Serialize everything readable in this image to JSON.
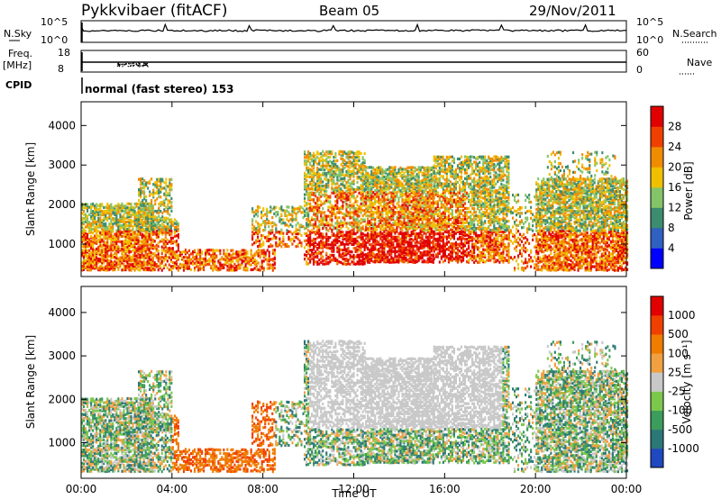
{
  "header": {
    "station": "Pykkvibaer (fitACF)",
    "beam": "Beam 05",
    "date": "29/Nov/2011"
  },
  "left_labels": {
    "nsky": "N.Sky",
    "freq_line1": "Freq.",
    "freq_line2": "[MHz]",
    "cpid": "CPID"
  },
  "right_labels": {
    "nsearch": "N.Search",
    "nave": "Nave"
  },
  "noise_panel": {
    "left_ticks": [
      "10^5",
      "10^0"
    ],
    "right_ticks": [
      "10^5",
      "10^0"
    ]
  },
  "freq_panel": {
    "left_ticks": [
      "18",
      "8"
    ],
    "right_ticks": [
      "60",
      "0"
    ]
  },
  "cpid_text": "normal (fast stereo) 153",
  "chart_data": [
    {
      "type": "heatmap",
      "panel": "power",
      "ylabel": "Slant Range [km]",
      "xlim": [
        "00:00",
        "00:00"
      ],
      "ylim": [
        180,
        4600
      ],
      "ytick_labels": [
        "1000",
        "2000",
        "3000",
        "4000"
      ],
      "colorbar": {
        "label": "Power [dB]",
        "tick_labels": [
          "28",
          "24",
          "20",
          "16",
          "12",
          "8",
          "4"
        ],
        "colors": [
          "#0000ff",
          "#3060c0",
          "#3c8c70",
          "#84c468",
          "#f0c000",
          "#f08c00",
          "#f04000",
          "#e00000"
        ]
      }
    },
    {
      "type": "heatmap",
      "panel": "velocity",
      "ylabel": "Slant Range [km]",
      "xlabel": "Time UT",
      "xtick_labels": [
        "00:00",
        "04:00",
        "08:00",
        "12:00",
        "16:00",
        "20:00",
        "00:00"
      ],
      "ylim": [
        180,
        4600
      ],
      "ytick_labels": [
        "1000",
        "2000",
        "3000",
        "4000"
      ],
      "colorbar": {
        "label": "Velocity [m s⁻¹]",
        "tick_labels": [
          "1000",
          "500",
          "100",
          "25",
          "-25",
          "-100",
          "-500",
          "-1000"
        ],
        "colors": [
          "#2048c0",
          "#2c7878",
          "#3c9c5c",
          "#7cc84c",
          "#c8c8c8",
          "#f0a040",
          "#f07c00",
          "#f04000",
          "#e00000"
        ]
      }
    }
  ]
}
